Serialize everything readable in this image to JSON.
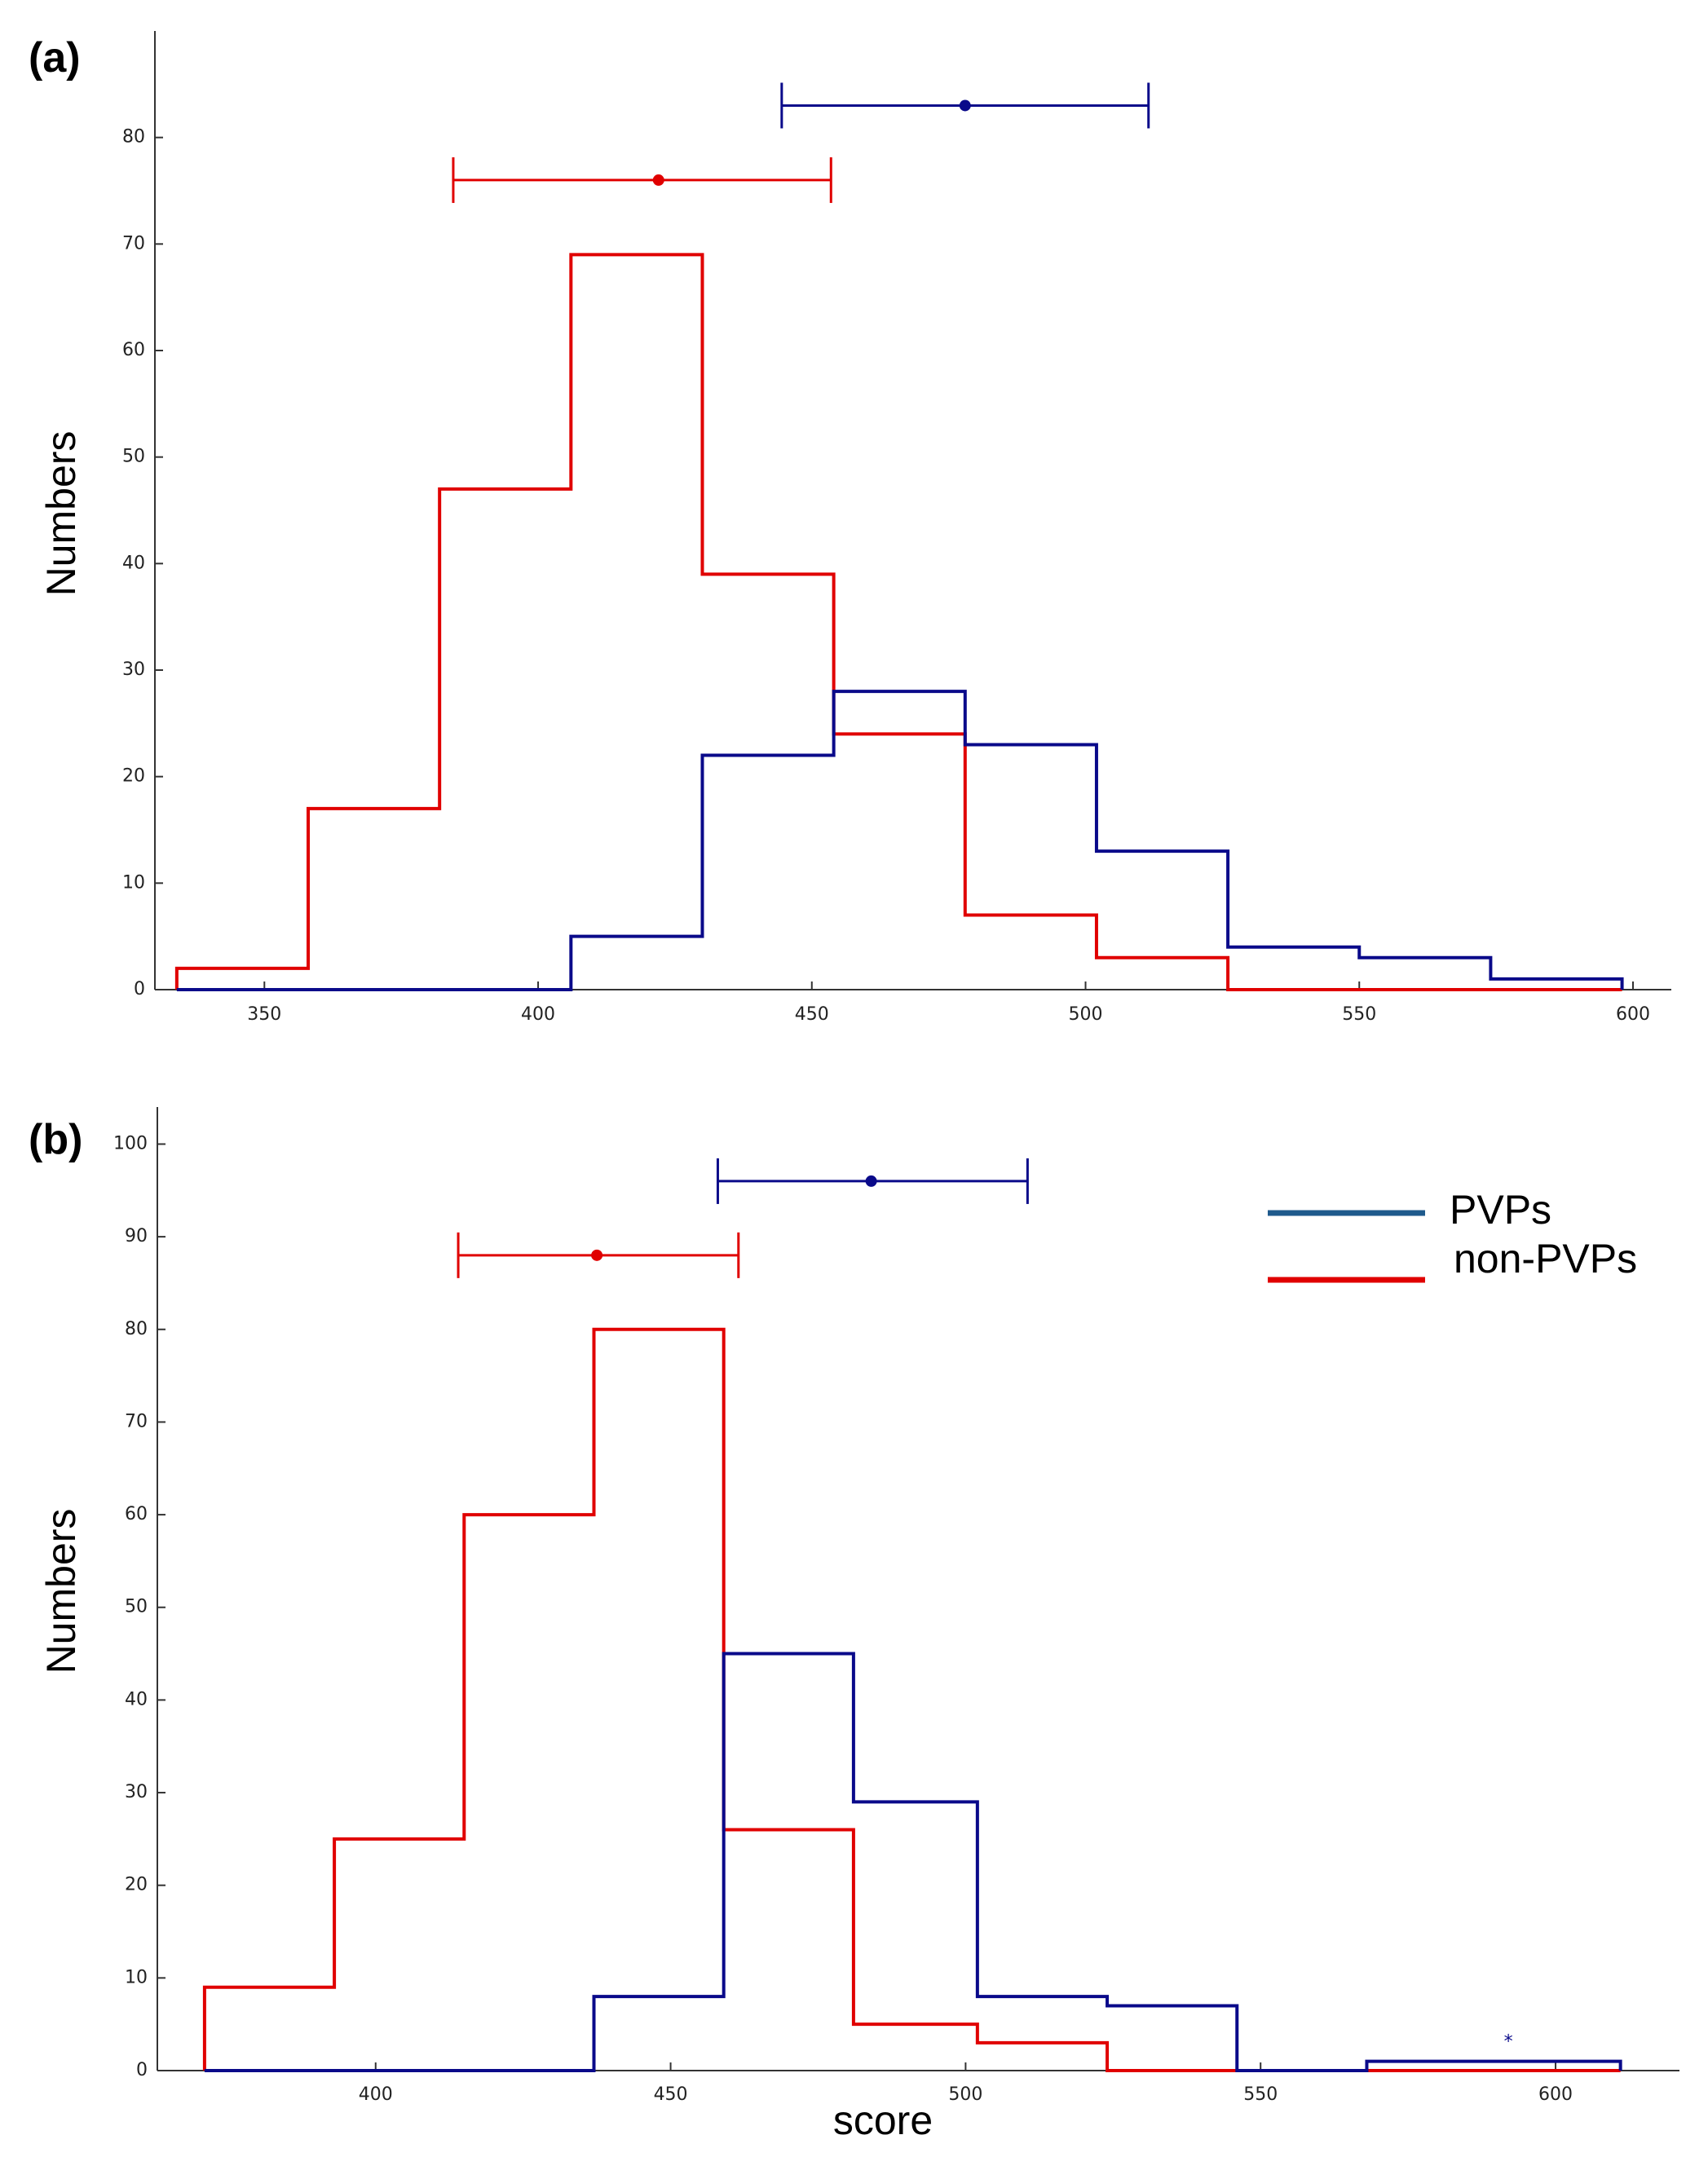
{
  "colors": {
    "pvps": "#0a0a8a",
    "non_pvps": "#e00000",
    "legend_pvps": "#1f5a8c",
    "axis": "#333333"
  },
  "legend": {
    "pvps_label": "PVPs",
    "non_pvps_label": "non-PVPs"
  },
  "chart_data": [
    {
      "type": "histogram",
      "panel_label": "(a)",
      "ylabel": "Numbers",
      "xlabel": "",
      "xlim": [
        330,
        607
      ],
      "ylim": [
        0,
        90
      ],
      "xticks": [
        350,
        400,
        450,
        500,
        550,
        600
      ],
      "yticks": [
        0,
        10,
        20,
        30,
        40,
        50,
        60,
        70,
        80
      ],
      "series": [
        {
          "name": "non-PVPs",
          "bin_edges": [
            334,
            358,
            382,
            406,
            430,
            454,
            478,
            502,
            526,
            550,
            574,
            598
          ],
          "counts": [
            2,
            17,
            47,
            69,
            39,
            24,
            7,
            3,
            0,
            0,
            0
          ],
          "mean_errorbar": {
            "mean": 422,
            "low": 384.5,
            "high": 453.5,
            "y": 76
          }
        },
        {
          "name": "PVPs",
          "bin_edges": [
            334,
            358,
            382,
            406,
            430,
            454,
            478,
            502,
            526,
            550,
            574,
            598
          ],
          "counts": [
            0,
            0,
            0,
            5,
            22,
            28,
            23,
            13,
            4,
            3,
            1
          ],
          "mean_errorbar": {
            "mean": 478,
            "low": 444.5,
            "high": 511.5,
            "y": 83
          }
        }
      ]
    },
    {
      "type": "histogram",
      "panel_label": "(b)",
      "ylabel": "Numbers",
      "xlabel": "score",
      "xlim": [
        363,
        621
      ],
      "ylim": [
        0,
        104
      ],
      "xticks": [
        400,
        450,
        500,
        550,
        600
      ],
      "yticks": [
        0,
        10,
        20,
        30,
        40,
        50,
        60,
        70,
        80,
        90,
        100
      ],
      "annotation": "*",
      "series": [
        {
          "name": "non-PVPs",
          "bin_edges": [
            371,
            393,
            415,
            437,
            459,
            481,
            502,
            524,
            546,
            568,
            589,
            611
          ],
          "counts": [
            9,
            25,
            60,
            80,
            26,
            5,
            3,
            0,
            0,
            0,
            0
          ],
          "mean_errorbar": {
            "mean": 437.5,
            "low": 414,
            "high": 461.5,
            "y": 88
          }
        },
        {
          "name": "PVPs",
          "bin_edges": [
            371,
            393,
            415,
            437,
            459,
            481,
            502,
            524,
            546,
            568,
            589,
            611
          ],
          "counts": [
            0,
            0,
            0,
            8,
            45,
            29,
            8,
            7,
            0,
            1,
            1
          ],
          "mean_errorbar": {
            "mean": 484,
            "low": 458,
            "high": 510.5,
            "y": 96
          }
        }
      ]
    }
  ]
}
